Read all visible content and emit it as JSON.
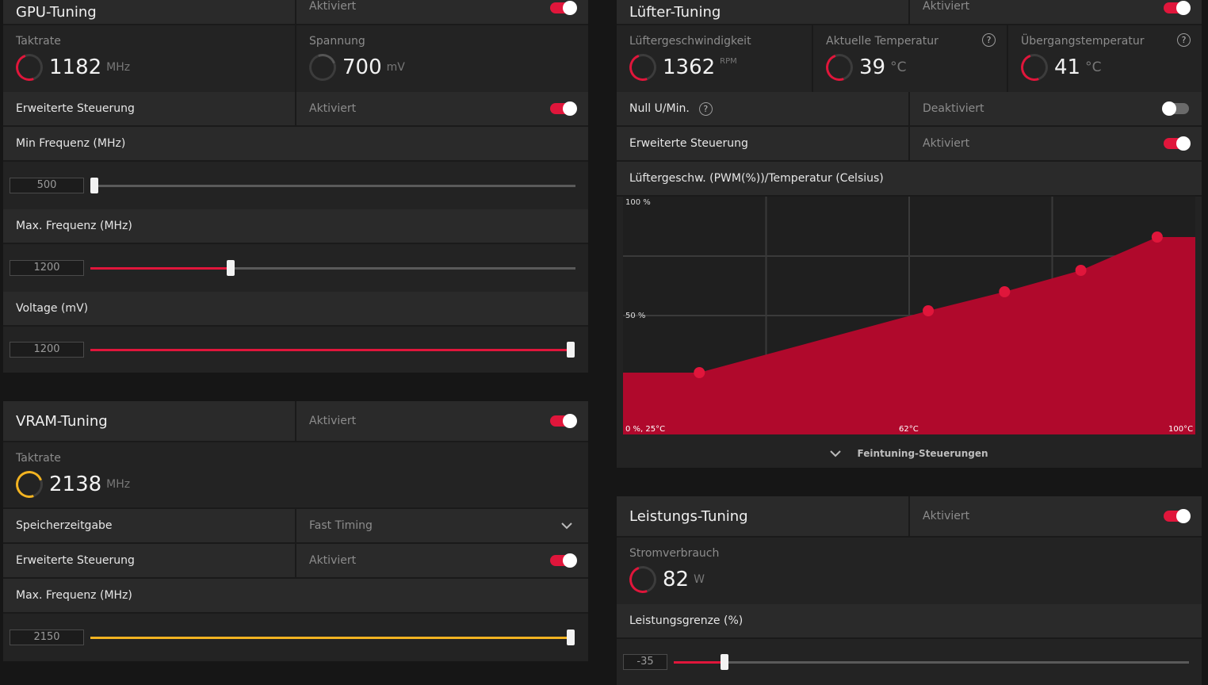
{
  "gpu": {
    "title": "GPU-Tuning",
    "status": "Aktiviert",
    "clock": {
      "label": "Taktrate",
      "value": "1182",
      "unit": "MHz"
    },
    "voltage": {
      "label": "Spannung",
      "value": "700",
      "unit": "mV"
    },
    "advanced": {
      "label": "Erweiterte Steuerung",
      "status": "Aktiviert"
    },
    "min_freq": {
      "label": "Min Frequenz (MHz)",
      "value": "500",
      "fraction": 0.0
    },
    "max_freq": {
      "label": "Max. Frequenz (MHz)",
      "value": "1200",
      "fraction": 0.29
    },
    "voltage_slider": {
      "label": "Voltage (mV)",
      "value": "1200",
      "fraction": 1.0
    }
  },
  "vram": {
    "title": "VRAM-Tuning",
    "status": "Aktiviert",
    "clock": {
      "label": "Taktrate",
      "value": "2138",
      "unit": "MHz"
    },
    "timing": {
      "label": "Speicherzeitgabe",
      "value": "Fast Timing"
    },
    "advanced": {
      "label": "Erweiterte Steuerung",
      "status": "Aktiviert"
    },
    "max_freq": {
      "label": "Max. Frequenz (MHz)",
      "value": "2150",
      "fraction": 1.0
    }
  },
  "fan": {
    "title": "Lüfter-Tuning",
    "status": "Aktiviert",
    "speed": {
      "label": "Lüftergeschwindigkeit",
      "value": "1362",
      "unit": "RPM"
    },
    "temp": {
      "label": "Aktuelle Temperatur",
      "value": "39",
      "unit": "°C"
    },
    "junction": {
      "label": "Übergangstemperatur",
      "value": "41",
      "unit": "°C"
    },
    "zero_rpm": {
      "label": "Null U/Min.",
      "status": "Deaktiviert"
    },
    "advanced": {
      "label": "Erweiterte Steuerung",
      "status": "Aktiviert"
    },
    "curve_title": "Lüftergeschw. (PWM(%))/Temperatur (Celsius)",
    "fine_tuning": "Feintuning-Steuerungen"
  },
  "power": {
    "title": "Leistungs-Tuning",
    "status": "Aktiviert",
    "consumption": {
      "label": "Stromverbrauch",
      "value": "82",
      "unit": "W"
    },
    "limit": {
      "label": "Leistungsgrenze (%)",
      "value": "-35",
      "fraction": 0.1
    }
  },
  "chart_data": {
    "type": "area",
    "x_unit": "°C",
    "y_unit": "%",
    "xlim": [
      25,
      100
    ],
    "ylim": [
      0,
      100
    ],
    "tick_labels": {
      "y_top": "100 %",
      "y_mid": "50 %",
      "origin": "0 %, 25°C",
      "x_mid": "62°C",
      "x_max": "100°C"
    },
    "points": [
      {
        "x": 35,
        "y": 26
      },
      {
        "x": 65,
        "y": 52
      },
      {
        "x": 75,
        "y": 60
      },
      {
        "x": 85,
        "y": 69
      },
      {
        "x": 95,
        "y": 83
      }
    ],
    "plateau": 83,
    "colors": {
      "fill": "#b0092c",
      "point": "#e0163b"
    },
    "grid": true
  },
  "colors": {
    "accent": "#e0163b",
    "vram_accent": "#f2b321"
  }
}
